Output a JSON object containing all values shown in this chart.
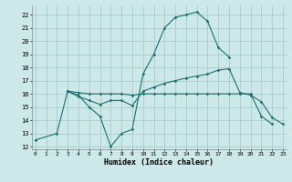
{
  "xlabel": "Humidex (Indice chaleur)",
  "bg_color": "#cce8e8",
  "grid_color": "#aacccc",
  "line_color": "#1a7070",
  "xlim": [
    -0.3,
    23.3
  ],
  "ylim": [
    11.8,
    22.7
  ],
  "xticks": [
    0,
    1,
    2,
    3,
    4,
    5,
    6,
    7,
    8,
    9,
    10,
    11,
    12,
    13,
    14,
    15,
    16,
    17,
    18,
    19,
    20,
    21,
    22,
    23
  ],
  "yticks": [
    12,
    13,
    14,
    15,
    16,
    17,
    18,
    19,
    20,
    21,
    22
  ],
  "line1": {
    "x": [
      0,
      2,
      3,
      4,
      5,
      6,
      7,
      8,
      9,
      10,
      11,
      12,
      13,
      14,
      15,
      16,
      17,
      18
    ],
    "y": [
      12.5,
      13.0,
      16.2,
      15.9,
      15.0,
      14.3,
      12.0,
      13.0,
      13.3,
      17.5,
      19.0,
      21.0,
      21.8,
      22.0,
      22.2,
      21.5,
      19.5,
      18.8
    ]
  },
  "line2": {
    "x": [
      3,
      4,
      5,
      6,
      7,
      8,
      9,
      10,
      11,
      12,
      13,
      14,
      15,
      16,
      17,
      18,
      19,
      20,
      21,
      22,
      23
    ],
    "y": [
      16.2,
      15.8,
      15.5,
      15.2,
      15.5,
      15.5,
      15.1,
      16.2,
      16.5,
      16.8,
      17.0,
      17.2,
      17.35,
      17.5,
      17.8,
      17.9,
      16.1,
      15.9,
      15.4,
      14.2,
      13.7
    ]
  },
  "line3": {
    "x": [
      3,
      4,
      5,
      6,
      7,
      8,
      9,
      10,
      11,
      12,
      13,
      14,
      15,
      16,
      17,
      18,
      19,
      20,
      21,
      22,
      23
    ],
    "y": [
      16.2,
      16.1,
      16.0,
      16.0,
      16.0,
      16.0,
      15.9,
      16.0,
      16.0,
      16.0,
      16.0,
      16.0,
      16.0,
      16.0,
      16.0,
      16.0,
      16.0,
      16.0,
      14.3,
      13.7,
      null
    ]
  }
}
